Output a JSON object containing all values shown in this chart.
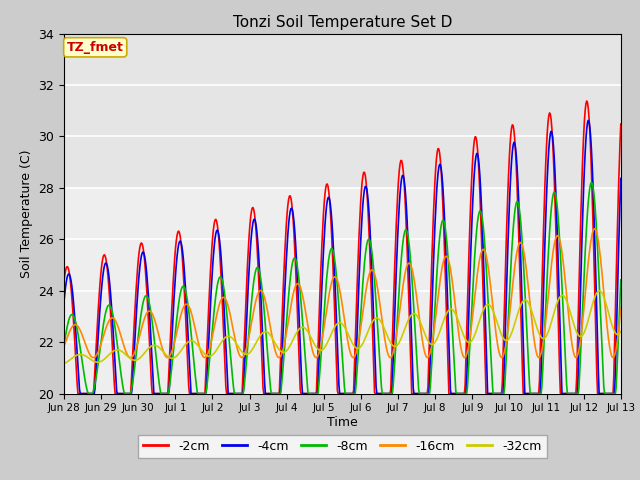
{
  "title": "Tonzi Soil Temperature Set D",
  "xlabel": "Time",
  "ylabel": "Soil Temperature (C)",
  "annotation_text": "TZ_fmet",
  "annotation_bg": "#ffffcc",
  "annotation_border": "#ccaa00",
  "annotation_text_color": "#cc0000",
  "ylim": [
    20,
    34
  ],
  "series_colors": [
    "#ff0000",
    "#0000ee",
    "#00bb00",
    "#ff8800",
    "#cccc00"
  ],
  "series_labels": [
    "-2cm",
    "-4cm",
    "-8cm",
    "-16cm",
    "-32cm"
  ],
  "fig_bg_color": "#cccccc",
  "plot_bg_color": "#eeeeee",
  "tick_labels": [
    "Jun 28",
    "Jun 29",
    "Jun 30",
    "Jul 1",
    "Jul 2",
    "Jul 3",
    "Jul 4",
    "Jul 5",
    "Jul 6",
    "Jul 7",
    "Jul 8",
    "Jul 9",
    "Jul 10",
    "Jul 11",
    "Jul 12",
    "Jul 13"
  ],
  "yticks": [
    20,
    22,
    24,
    26,
    28,
    30,
    32,
    34
  ],
  "n_days": 15
}
